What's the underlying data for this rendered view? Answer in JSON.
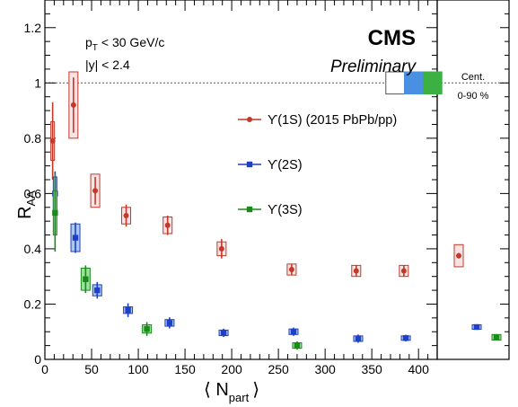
{
  "chart_data": {
    "type": "scatter",
    "title": "",
    "xlabel": "⟨ N_part ⟩",
    "xlabel_main": "⟨ N",
    "xlabel_sub": "part",
    "xlabel_close": "⟩",
    "ylabel_main": "R",
    "ylabel_sub": "AA",
    "xlim": [
      0,
      420
    ],
    "ylim": [
      0,
      1.3
    ],
    "x_ticks": [
      "0",
      "50",
      "100",
      "150",
      "200",
      "250",
      "300",
      "350",
      "400"
    ],
    "y_ticks": [
      "0",
      "0.2",
      "0.4",
      "0.6",
      "0.8",
      "1",
      "1.2"
    ],
    "reference_line": 1.0,
    "annotations": {
      "cms": "CMS",
      "preliminary": "Preliminary",
      "pt_prefix": "p",
      "pt_sub": "T",
      "pt_suffix": "< 30 GeV/c",
      "rapidity": "|y| < 2.4",
      "cent_title": "Cent.",
      "cent_range": "0-90 %"
    },
    "legend_position": "right",
    "series": [
      {
        "name": "ϒ(1S) (2015 PbPb/pp)",
        "color": "#c0392b",
        "box_fill": "#fbe3e3",
        "marker": "circle",
        "points": [
          {
            "x": 8.3,
            "y": 0.79,
            "err": 0.14,
            "sys": 0.07
          },
          {
            "x": 30.6,
            "y": 0.92,
            "err": 0.1,
            "sys": 0.12
          },
          {
            "x": 53.9,
            "y": 0.61,
            "err": 0.05,
            "sys": 0.06
          },
          {
            "x": 87.0,
            "y": 0.52,
            "err": 0.04,
            "sys": 0.03
          },
          {
            "x": 131.4,
            "y": 0.485,
            "err": 0.035,
            "sys": 0.03
          },
          {
            "x": 189.2,
            "y": 0.4,
            "err": 0.035,
            "sys": 0.025
          },
          {
            "x": 264.2,
            "y": 0.325,
            "err": 0.02,
            "sys": 0.02
          },
          {
            "x": 333.3,
            "y": 0.32,
            "err": 0.02,
            "sys": 0.02
          },
          {
            "x": 384.3,
            "y": 0.32,
            "err": 0.02,
            "sys": 0.02
          }
        ],
        "integrated": {
          "y": 0.375,
          "err": 0.01,
          "sys": 0.04
        }
      },
      {
        "name": "ϒ(2S)",
        "color": "#1f3fc4",
        "box_fill": "#a9c8f2",
        "marker": "square",
        "points": [
          {
            "x": 10.9,
            "y": 0.6,
            "err": 0.08,
            "sys": 0.06
          },
          {
            "x": 32.7,
            "y": 0.44,
            "err": 0.055,
            "sys": 0.05
          },
          {
            "x": 56.0,
            "y": 0.25,
            "err": 0.03,
            "sys": 0.02
          },
          {
            "x": 89.0,
            "y": 0.178,
            "err": 0.025,
            "sys": 0.012
          },
          {
            "x": 133.5,
            "y": 0.132,
            "err": 0.02,
            "sys": 0.012
          },
          {
            "x": 191.3,
            "y": 0.096,
            "err": 0.015,
            "sys": 0.01
          },
          {
            "x": 266.2,
            "y": 0.1,
            "err": 0.015,
            "sys": 0.01
          },
          {
            "x": 335.4,
            "y": 0.075,
            "err": 0.015,
            "sys": 0.01
          },
          {
            "x": 386.4,
            "y": 0.077,
            "err": 0.012,
            "sys": 0.008
          }
        ],
        "integrated": {
          "y": 0.117,
          "err": 0.01,
          "sys": 0.008
        }
      },
      {
        "name": "ϒ(3S)",
        "color": "#1a8a1a",
        "box_fill": "#9be09b",
        "marker": "square",
        "points": [
          {
            "x": 10.9,
            "y": 0.53,
            "err": 0.14,
            "sys": 0.08
          },
          {
            "x": 43.6,
            "y": 0.29,
            "err": 0.05,
            "sys": 0.04
          },
          {
            "x": 109.2,
            "y": 0.11,
            "err": 0.025,
            "sys": 0.015
          },
          {
            "x": 270.0,
            "y": 0.05,
            "err": 0.015,
            "sys": 0.01
          }
        ],
        "integrated": {
          "y": 0.08,
          "err": 0.008,
          "sys": 0.01
        }
      }
    ],
    "global_uncertainty_boxes": [
      {
        "series": "pp",
        "color": "#ffffff"
      },
      {
        "series": "ϒ(2S)",
        "color": "#4a90e2"
      },
      {
        "series": "ϒ(3S)",
        "color": "#3cb043"
      }
    ]
  }
}
